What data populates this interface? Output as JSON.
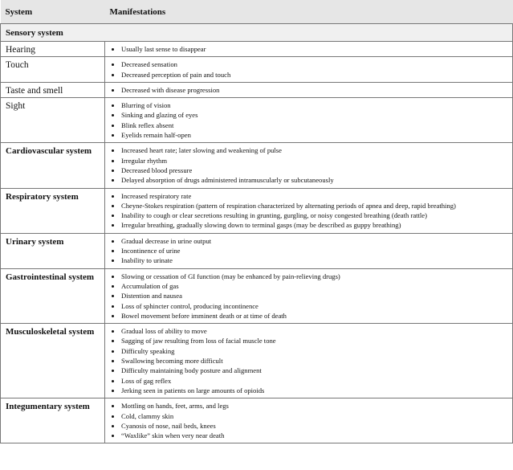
{
  "header": {
    "system": "System",
    "manifestations": "Manifestations"
  },
  "sensory": {
    "title": "Sensory system",
    "rows": [
      {
        "system": "Hearing",
        "items": [
          "Usually last sense to disappear"
        ]
      },
      {
        "system": "Touch",
        "items": [
          "Decreased sensation",
          "Decreased perception of pain and touch"
        ]
      },
      {
        "system": "Taste and smell",
        "items": [
          "Decreased with disease progression"
        ]
      },
      {
        "system": "Sight",
        "items": [
          "Blurring of vision",
          "Sinking and glazing of eyes",
          "Blink reflex absent",
          "Eyelids remain half-open"
        ]
      }
    ]
  },
  "rows": [
    {
      "system": "Cardiovascular system",
      "items": [
        "Increased heart rate; later slowing and weakening of pulse",
        "Irregular rhythm",
        "Decreased blood pressure",
        "Delayed absorption of drugs administered intramuscularly or subcutaneously"
      ]
    },
    {
      "system": "Respiratory system",
      "items": [
        "Increased respiratory rate",
        "Cheyne-Stokes respiration (pattern of respiration characterized by alternating periods of apnea and deep, rapid breathing)",
        "Inability to cough or clear secretions resulting in grunting, gurgling, or noisy congested breathing (death rattle)",
        "Irregular breathing, gradually slowing down to terminal gasps (may be described as guppy breathing)"
      ]
    },
    {
      "system": "Urinary system",
      "items": [
        "Gradual decrease in urine output",
        "Incontinence of urine",
        "Inability to urinate"
      ]
    },
    {
      "system": "Gastrointestinal system",
      "items": [
        "Slowing or cessation of GI function (may be enhanced by pain-relieving drugs)",
        "Accumulation of gas",
        "Distention and nausea",
        "Loss of sphincter control, producing incontinence",
        "Bowel movement before imminent death or at time of death"
      ]
    },
    {
      "system": "Musculoskeletal system",
      "items": [
        "Gradual loss of ability to move",
        "Sagging of jaw resulting from loss of facial muscle tone",
        "Difficulty speaking",
        "Swallowing becoming more difficult",
        "Difficulty maintaining body posture and alignment",
        "Loss of gag reflex",
        "Jerking seen in patients on large amounts of opioids"
      ]
    },
    {
      "system": "Integumentary system",
      "items": [
        "Mottling on hands, feet, arms, and legs",
        "Cold, clammy skin",
        "Cyanosis of nose, nail beds, knees",
        "“Waxlike” skin when very near death"
      ]
    }
  ]
}
